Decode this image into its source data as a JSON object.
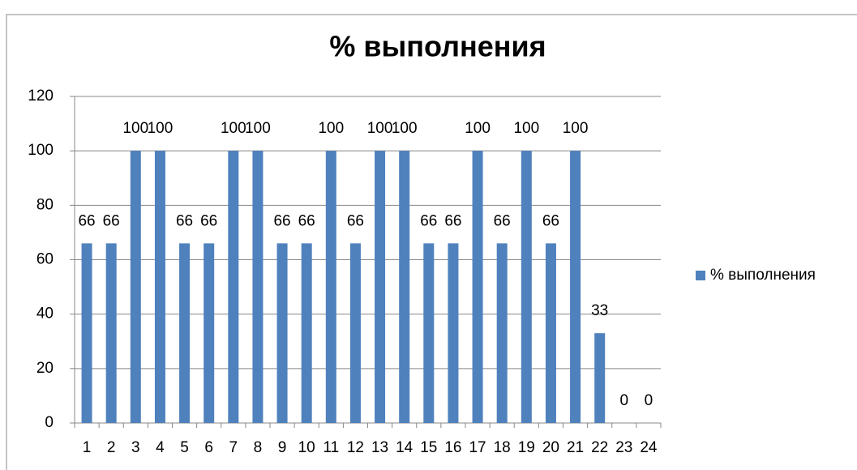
{
  "chart_data": {
    "type": "bar",
    "title": "% выполнения",
    "categories": [
      "1",
      "2",
      "3",
      "4",
      "5",
      "6",
      "7",
      "8",
      "9",
      "10",
      "11",
      "12",
      "13",
      "14",
      "15",
      "16",
      "17",
      "18",
      "19",
      "20",
      "21",
      "22",
      "23",
      "24"
    ],
    "series": [
      {
        "name": "% выполнения",
        "color": "#4f81bd",
        "values": [
          66,
          66,
          100,
          100,
          66,
          66,
          100,
          100,
          66,
          66,
          100,
          66,
          100,
          100,
          66,
          66,
          100,
          66,
          100,
          66,
          100,
          33,
          0,
          0
        ]
      }
    ],
    "ylim": [
      0,
      120
    ],
    "yticks": [
      0,
      20,
      40,
      60,
      80,
      100,
      120
    ],
    "grid": true,
    "legend": "right"
  }
}
